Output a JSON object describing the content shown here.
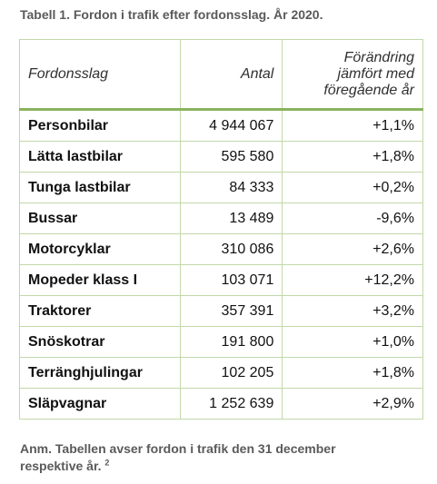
{
  "caption": "Tabell 1. Fordon i trafik efter fordonsslag. År 2020.",
  "headers": {
    "type": "Fordonsslag",
    "count": "Antal",
    "change_line1": "Förändring",
    "change_line2": "jämfört med",
    "change_line3": "föregående år"
  },
  "rows": [
    {
      "type": "Personbilar",
      "count": "4 944 067",
      "change": "+1,1%"
    },
    {
      "type": "Lätta lastbilar",
      "count": "595 580",
      "change": "+1,8%"
    },
    {
      "type": "Tunga lastbilar",
      "count": "84 333",
      "change": "+0,2%"
    },
    {
      "type": "Bussar",
      "count": "13 489",
      "change": "-9,6%"
    },
    {
      "type": "Motorcyklar",
      "count": "310 086",
      "change": "+2,6%"
    },
    {
      "type": "Mopeder klass I",
      "count": "103 071",
      "change": "+12,2%"
    },
    {
      "type": "Traktorer",
      "count": "357 391",
      "change": "+3,2%"
    },
    {
      "type": "Snöskotrar",
      "count": "191 800",
      "change": "+1,0%"
    },
    {
      "type": "Terränghjulingar",
      "count": "102 205",
      "change": "+1,8%"
    },
    {
      "type": "Släpvagnar",
      "count": "1 252 639",
      "change": "+2,9%"
    }
  ],
  "note": {
    "line1": "Anm. Tabellen avser fordon i trafik den 31 december",
    "line2": "respektive år.",
    "footnote_marker": "2"
  }
}
